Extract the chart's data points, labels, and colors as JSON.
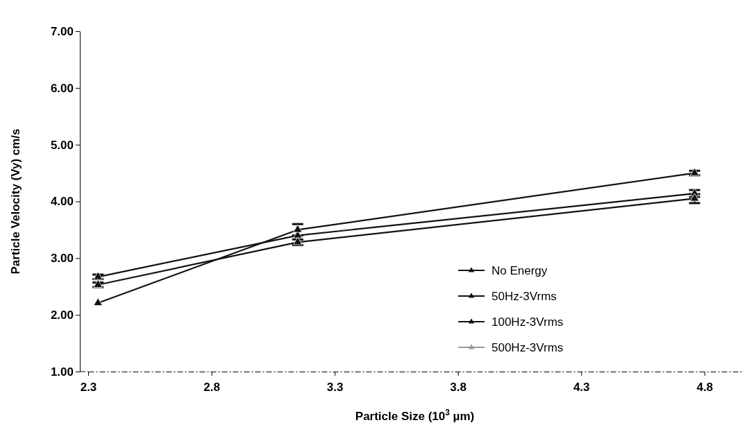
{
  "chart_data": {
    "type": "line",
    "xlabel": "Particle Size (10$^{3}$ µm)",
    "ylabel": "Particle Velocity (Vy) cm/s",
    "x": [
      2.34,
      3.15,
      4.76
    ],
    "series": [
      {
        "name": "No Energy",
        "color": "#111111",
        "values": [
          2.67,
          3.4,
          4.14
        ],
        "errors": [
          0.04,
          null,
          0.06
        ]
      },
      {
        "name": "50Hz-3Vrms",
        "color": "#111111",
        "values": [
          2.53,
          3.28,
          4.05
        ],
        "errors": [
          0.04,
          0.05,
          0.08
        ]
      },
      {
        "name": "100Hz-3Vrms",
        "color": "#111111",
        "values": [
          2.21,
          3.5,
          4.5
        ],
        "errors": [
          null,
          0.1,
          0.04
        ]
      },
      {
        "name": "500Hz-3Vrms",
        "color": "#999999",
        "values": [
          null,
          null,
          null
        ]
      }
    ],
    "xlim": [
      2.3,
      4.95
    ],
    "xticks": [
      2.3,
      2.8,
      3.3,
      3.8,
      4.3,
      4.8
    ],
    "ylim": [
      1,
      7
    ],
    "yticks": [
      {
        "value": 1,
        "label": "1.00"
      },
      {
        "value": 2,
        "label": "2.00"
      },
      {
        "value": 3,
        "label": "3.00"
      },
      {
        "value": 4,
        "label": "4.00"
      },
      {
        "value": 5,
        "label": "5.00"
      },
      {
        "value": 6,
        "label": "6.00"
      },
      {
        "value": 7,
        "label": "7.00"
      }
    ],
    "grid": false,
    "legend": "right",
    "marker": "triangle",
    "line_style": "solid"
  }
}
